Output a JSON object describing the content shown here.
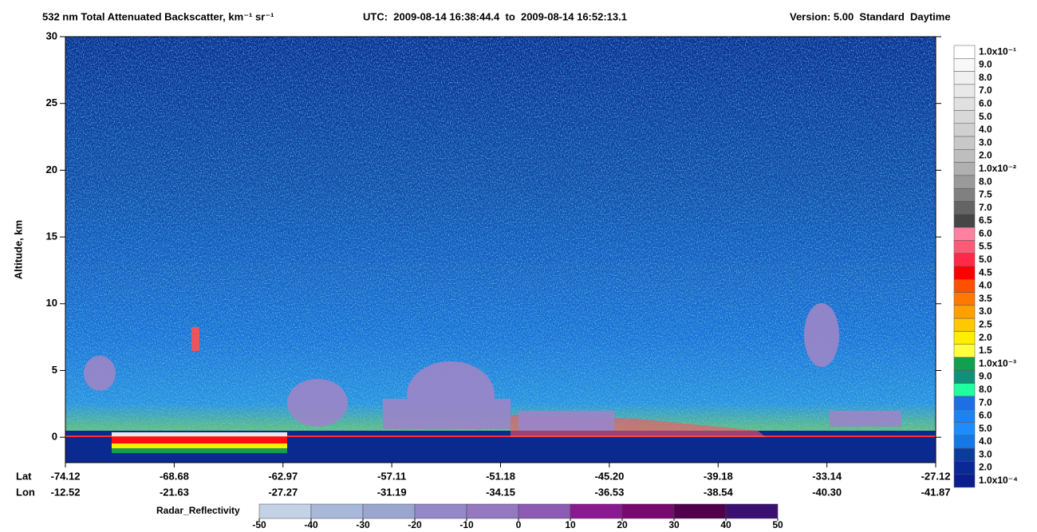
{
  "chart_data": {
    "type": "curtain",
    "title": "532 nm Total Attenuated Backscatter, km⁻¹ sr⁻¹",
    "subtitle": "UTC:  2009-08-14 16:38:44.4  to  2009-08-14 16:52:13.1",
    "version": "Version: 5.00  Standard  Daytime",
    "ylabel": "Altitude, km",
    "ylim": [
      -1.9,
      30
    ],
    "yticks": [
      0,
      5,
      10,
      15,
      20,
      25,
      30
    ],
    "lat_label": "Lat",
    "lon_label": "Lon",
    "lat": [
      "-74.12",
      "-68.68",
      "-62.97",
      "-57.11",
      "-51.18",
      "-45.20",
      "-39.18",
      "-33.14",
      "-27.12"
    ],
    "lon": [
      "-12.52",
      "-21.63",
      "-27.27",
      "-31.19",
      "-34.15",
      "-36.53",
      "-38.54",
      "-40.30",
      "-41.87"
    ],
    "colorbar_labels": [
      "1.0x10⁻¹",
      "9.0",
      "8.0",
      "7.0",
      "6.0",
      "5.0",
      "4.0",
      "3.0",
      "2.0",
      "1.0x10⁻²",
      "8.0",
      "7.5",
      "7.0",
      "6.5",
      "6.0",
      "5.5",
      "5.0",
      "4.5",
      "4.0",
      "3.5",
      "3.0",
      "2.5",
      "2.0",
      "1.5",
      "1.0x10⁻³",
      "9.0",
      "8.0",
      "7.0",
      "6.0",
      "5.0",
      "4.0",
      "3.0",
      "2.0",
      "1.0x10⁻⁴"
    ],
    "colorbar_colors": [
      "#ffffff",
      "#f8f8f8",
      "#f0f0f0",
      "#e8e8e8",
      "#e0e0e0",
      "#d8d8d8",
      "#d0d0d0",
      "#c8c8c8",
      "#bebebe",
      "#b0b0b0",
      "#9a9a9a",
      "#808080",
      "#646464",
      "#464646",
      "#ff80a0",
      "#ff5a78",
      "#ff2a48",
      "#ff0000",
      "#ff5000",
      "#ff7800",
      "#ffa000",
      "#ffc800",
      "#ffee00",
      "#ffff40",
      "#10a050",
      "#10907a",
      "#20ffa0",
      "#1e6ee6",
      "#1e82f0",
      "#1e8cff",
      "#1478e6",
      "#0a3ca0",
      "#0a2896",
      "#0a1e90"
    ],
    "radar_label": "Radar_Reflectivity",
    "radar_ticks": [
      -50,
      -40,
      -30,
      -20,
      -10,
      0,
      10,
      20,
      30,
      40,
      50
    ],
    "radar_colors": [
      "#c4d2e6",
      "#a8b8d8",
      "#9aa6d0",
      "#9488c8",
      "#9478c0",
      "#8c5cb4",
      "#8a1a90",
      "#760a70",
      "#52004c",
      "#3a1070"
    ]
  }
}
